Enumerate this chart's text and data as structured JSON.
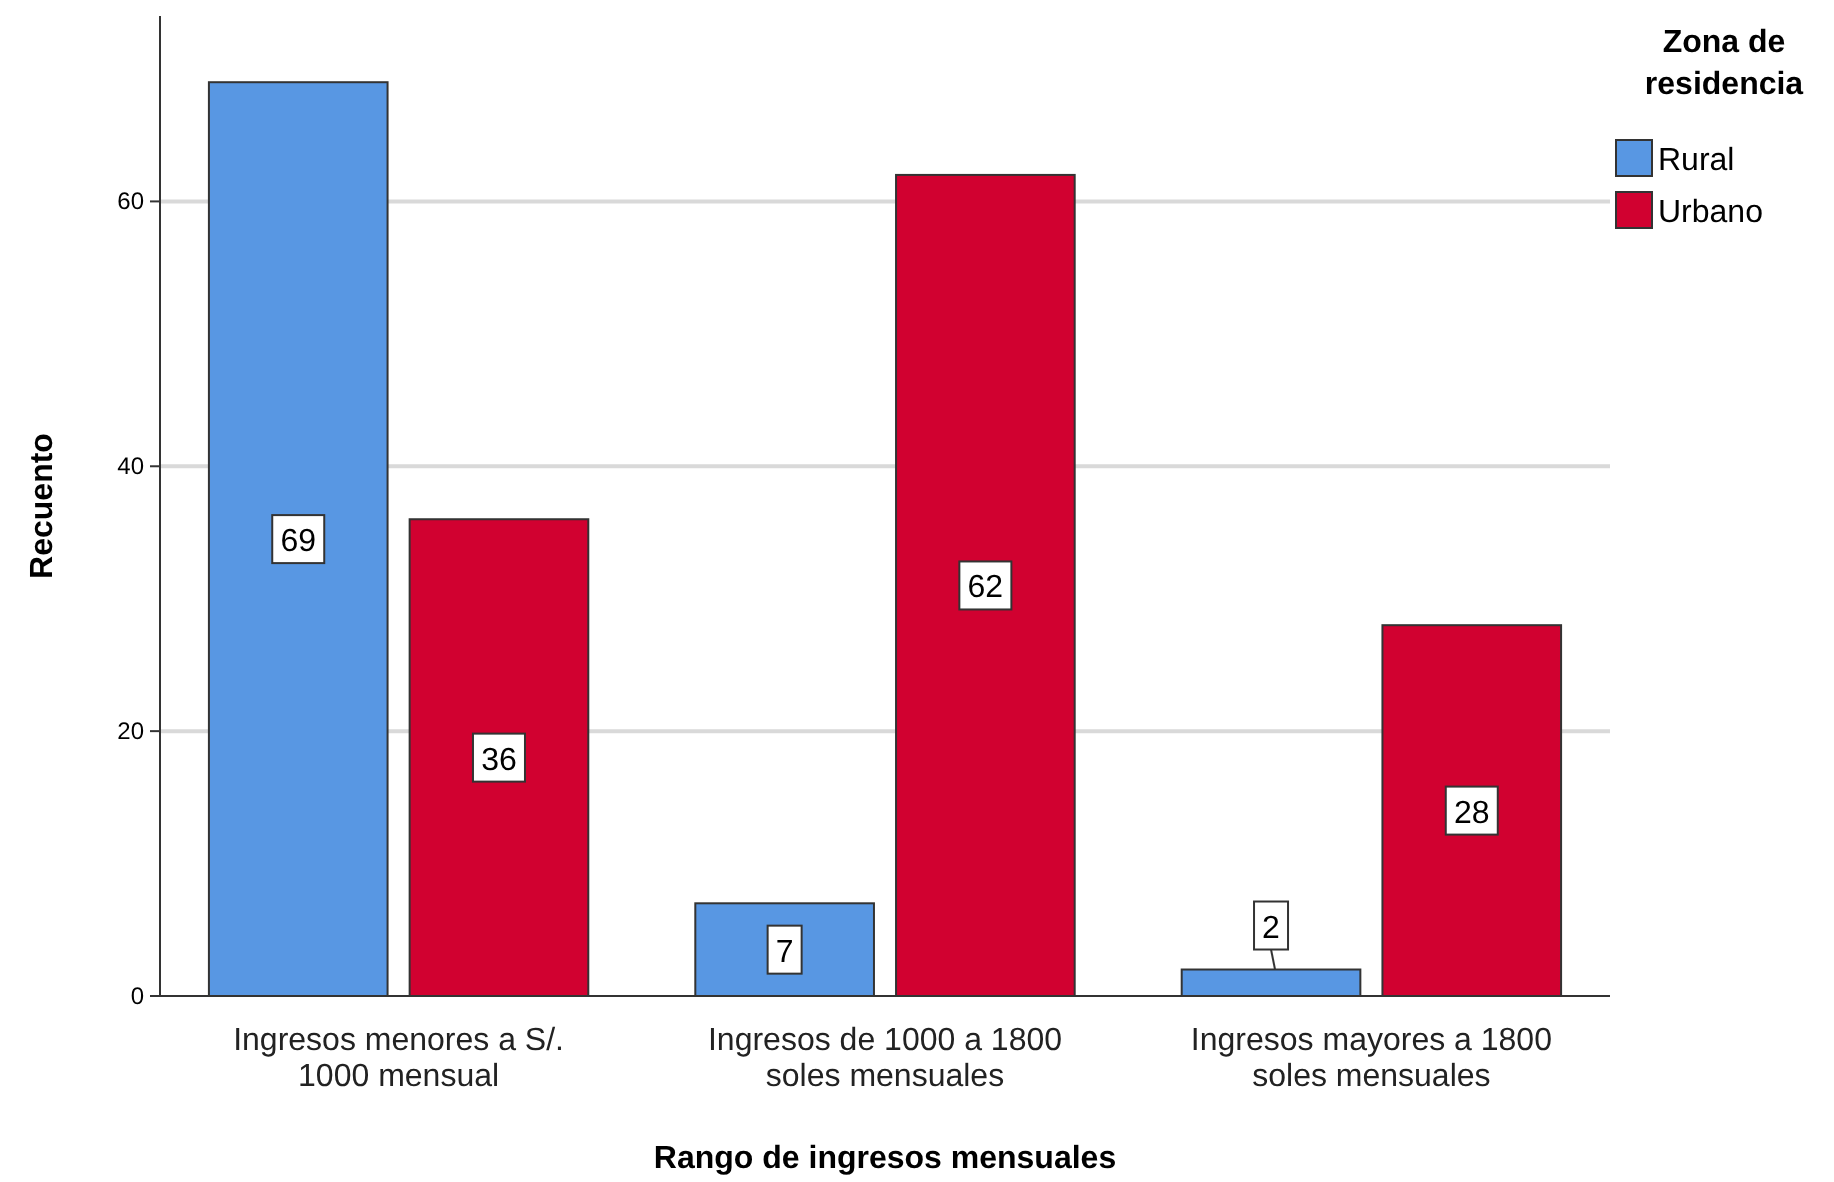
{
  "chart_data": {
    "type": "bar",
    "xlabel": "Rango de ingresos mensuales",
    "ylabel": "Recuento",
    "legend_title": "Zona de residencia",
    "categories": [
      "Ingresos menores a S/. 1000 mensual",
      "Ingresos de 1000 a 1800 soles mensuales",
      "Ingresos mayores a 1800 soles mensuales"
    ],
    "series": [
      {
        "name": "Rural",
        "color": "#5897e3",
        "values": [
          69,
          7,
          2
        ]
      },
      {
        "name": "Urbano",
        "color": "#d10130",
        "values": [
          36,
          62,
          28
        ]
      }
    ],
    "ylim": [
      0,
      74
    ],
    "yticks": [
      0,
      20,
      40,
      60
    ],
    "grid": "y",
    "legend": "top right",
    "data_labels": true
  }
}
